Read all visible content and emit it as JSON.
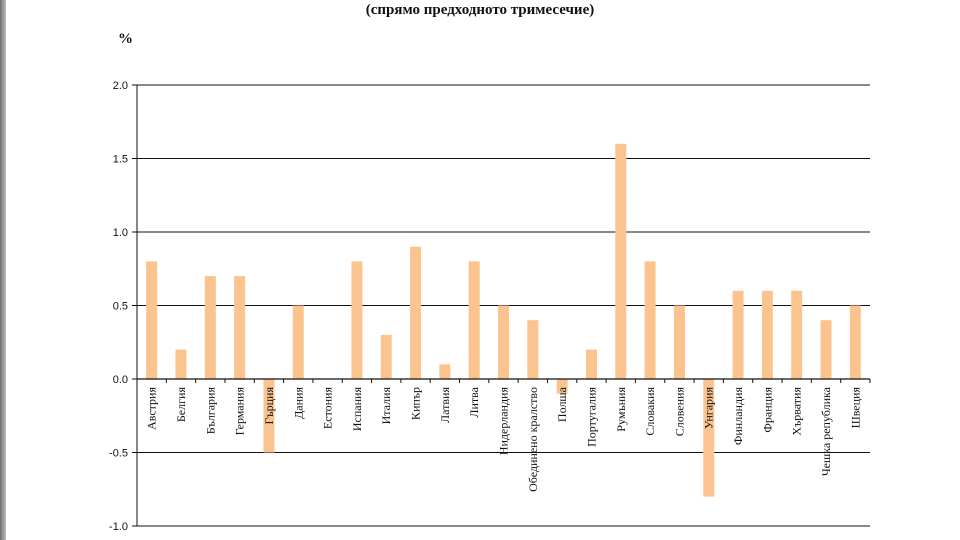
{
  "chart_data": {
    "type": "bar",
    "title": "(спрямо предходното тримесечие)",
    "ylabel": "%",
    "xlabel": "",
    "ylim": [
      -1.0,
      2.0
    ],
    "yticks": [
      "2.0",
      "1.5",
      "1.0",
      "0.5",
      "0.0",
      "-0.5",
      "-1.0"
    ],
    "grid": true,
    "bar_color": "#fbc48e",
    "categories": [
      "Австрия",
      "Белгия",
      "България",
      "Германия",
      "Гърция",
      "Дания",
      "Естония",
      "Испания",
      "Италия",
      "Кипър",
      "Латвия",
      "Литва",
      "Нидерландия",
      "Обединено кралство",
      "Полша",
      "Португалия",
      "Румъния",
      "Словакия",
      "Словения",
      "Унгария",
      "Финландия",
      "Франция",
      "Хърватия",
      "Чешка република",
      "Швеция"
    ],
    "values": [
      0.8,
      0.2,
      0.7,
      0.7,
      -0.5,
      0.5,
      0.0,
      0.8,
      0.3,
      0.9,
      0.1,
      0.8,
      0.5,
      0.4,
      -0.1,
      0.2,
      1.6,
      0.8,
      0.5,
      -0.8,
      0.6,
      0.6,
      0.6,
      0.4,
      0.5
    ]
  }
}
